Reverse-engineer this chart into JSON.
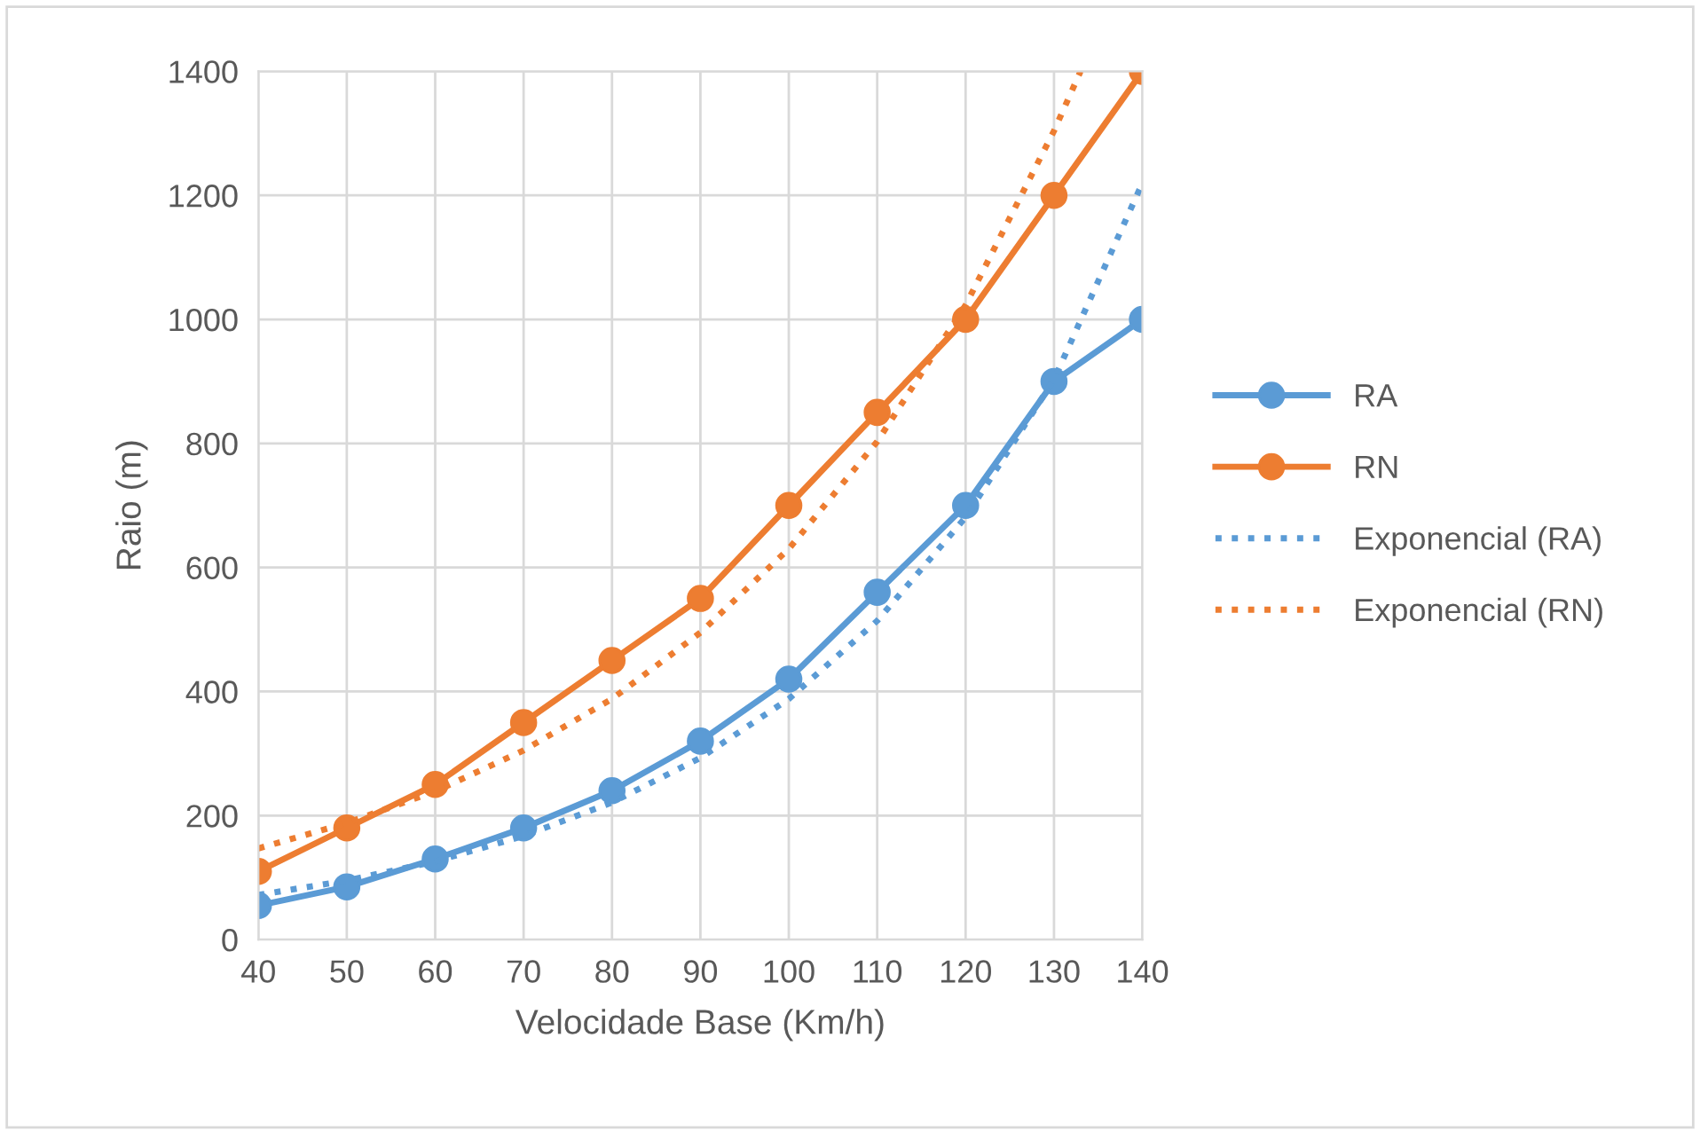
{
  "chart_data": {
    "type": "line",
    "xlabel": "Velocidade Base (Km/h)",
    "ylabel": "Raio (m)",
    "x": [
      40,
      50,
      60,
      70,
      80,
      90,
      100,
      110,
      120,
      130,
      140
    ],
    "series": [
      {
        "name": "RA",
        "color": "#5b9bd5",
        "marker": "circle",
        "line_style": "solid",
        "values": [
          55,
          85,
          130,
          180,
          240,
          320,
          420,
          560,
          700,
          900,
          1000
        ]
      },
      {
        "name": "RN",
        "color": "#ed7d31",
        "marker": "circle",
        "line_style": "solid",
        "values": [
          110,
          180,
          250,
          350,
          450,
          550,
          700,
          850,
          1000,
          1200,
          1400
        ]
      },
      {
        "name": "Exponencial (RA)",
        "color": "#5b9bd5",
        "marker": "none",
        "line_style": "dotted",
        "x": [
          40,
          50,
          60,
          70,
          80,
          90,
          100,
          110,
          120,
          130,
          140
        ],
        "values": [
          72,
          95,
          126,
          167,
          221,
          293,
          388,
          514,
          681,
          903,
          1220
        ]
      },
      {
        "name": "Exponencial (RN)",
        "color": "#ed7d31",
        "marker": "none",
        "line_style": "dotted",
        "x": [
          40,
          50,
          60,
          70,
          80,
          90,
          100,
          110,
          120,
          130,
          133
        ],
        "values": [
          147,
          188,
          239,
          305,
          388,
          495,
          630,
          803,
          1023,
          1304,
          1400
        ]
      }
    ],
    "xlim": [
      40,
      140
    ],
    "xticks": [
      40,
      50,
      60,
      70,
      80,
      90,
      100,
      110,
      120,
      130,
      140
    ],
    "ylim": [
      0,
      1400
    ],
    "yticks": [
      0,
      200,
      400,
      600,
      800,
      1000,
      1200,
      1400
    ],
    "grid": true,
    "legend": "right"
  }
}
